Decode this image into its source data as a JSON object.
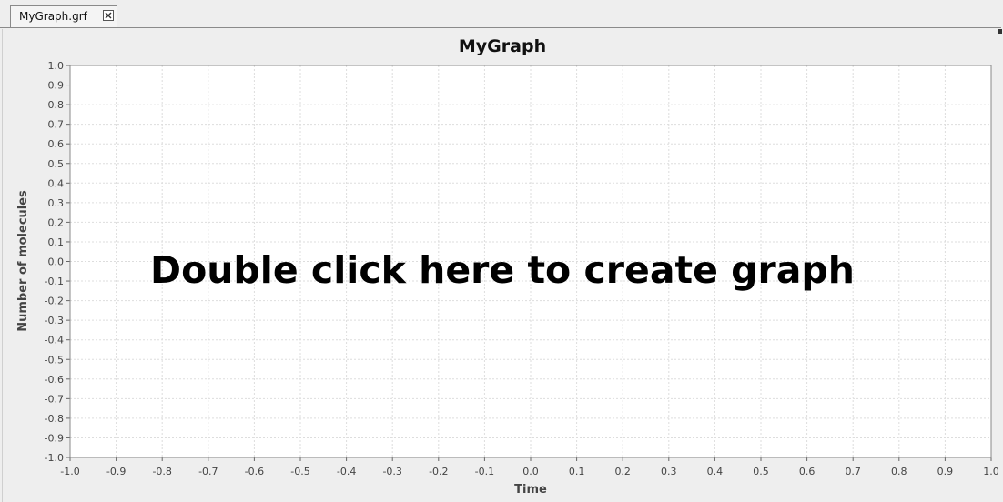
{
  "tab": {
    "label": "MyGraph.grf",
    "close_icon": "close-icon"
  },
  "chart_data": {
    "type": "line",
    "title": "MyGraph",
    "xlabel": "Time",
    "ylabel": "Number of molecules",
    "xlim": [
      -1.0,
      1.0
    ],
    "ylim": [
      -1.0,
      1.0
    ],
    "tick_step": 0.1,
    "x_ticks": [
      "-1.0",
      "-0.9",
      "-0.8",
      "-0.7",
      "-0.6",
      "-0.5",
      "-0.4",
      "-0.3",
      "-0.2",
      "-0.1",
      "0.0",
      "0.1",
      "0.2",
      "0.3",
      "0.4",
      "0.5",
      "0.6",
      "0.7",
      "0.8",
      "0.9",
      "1.0"
    ],
    "y_ticks": [
      "-1.0",
      "-0.9",
      "-0.8",
      "-0.7",
      "-0.6",
      "-0.5",
      "-0.4",
      "-0.3",
      "-0.2",
      "-0.1",
      "0.0",
      "0.1",
      "0.2",
      "0.3",
      "0.4",
      "0.5",
      "0.6",
      "0.7",
      "0.8",
      "0.9",
      "1.0"
    ],
    "grid": true,
    "series": [],
    "overlay_message": "Double click here to create graph",
    "colors": {
      "plot_background": "#ffffff",
      "grid": "#dddddd",
      "axis": "#888888"
    }
  }
}
